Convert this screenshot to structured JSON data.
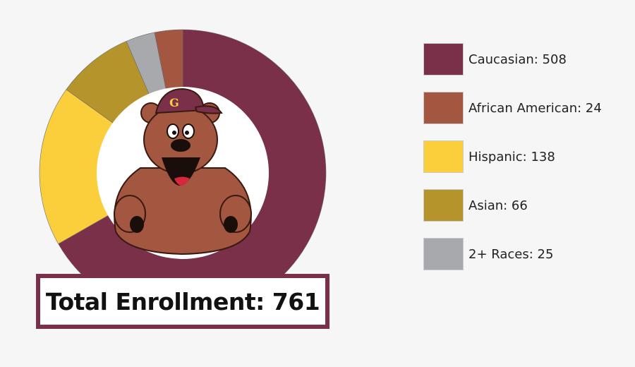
{
  "chart_data": {
    "type": "pie",
    "style": "donut",
    "categories": [
      "Caucasian",
      "Hispanic",
      "Asian",
      "2+ Races",
      "African American"
    ],
    "values": [
      508,
      138,
      66,
      25,
      24
    ],
    "colors": [
      "#7a3049",
      "#fbcf3c",
      "#b6942c",
      "#a8a9ac",
      "#a35640"
    ],
    "start": "top, clockwise",
    "legend_placement": "right",
    "legend": [
      {
        "label": "Caucasian: 508",
        "color": "#7a3049"
      },
      {
        "label": "African American: 24",
        "color": "#a35640"
      },
      {
        "label": "Hispanic: 138",
        "color": "#fbcf3c"
      },
      {
        "label": "Asian: 66",
        "color": "#b6942c"
      },
      {
        "label": "2+ Races: 25",
        "color": "#a8a9ac"
      }
    ],
    "center_image": "bear-mascot",
    "mascot_cap_letter": "G"
  },
  "total": {
    "label": "Total Enrollment: 761"
  }
}
